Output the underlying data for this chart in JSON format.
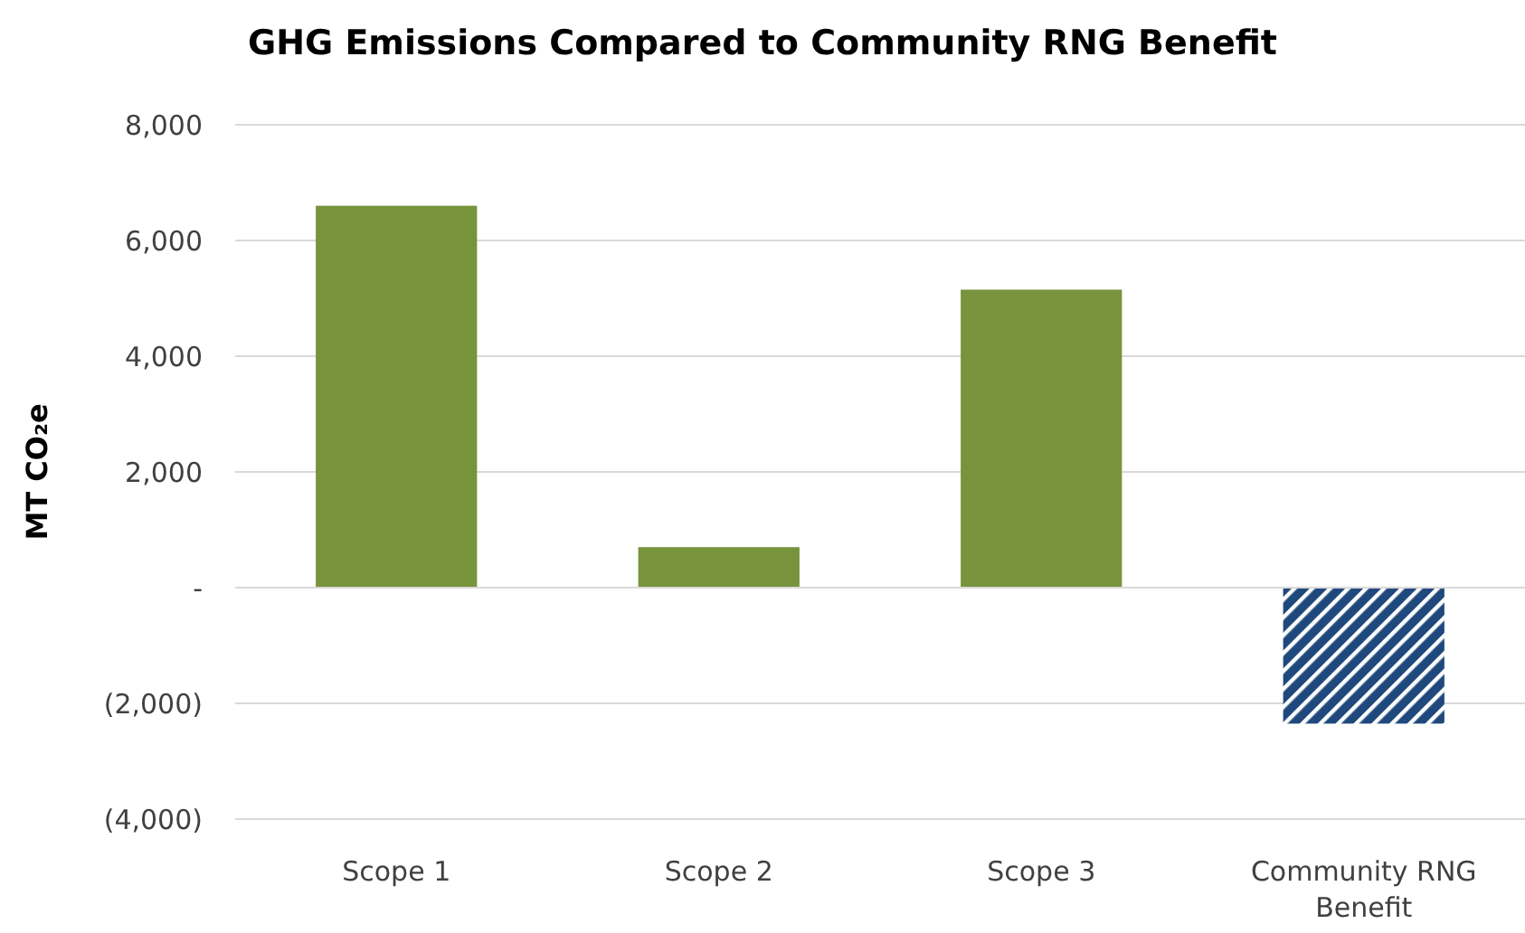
{
  "chart_data": {
    "type": "bar",
    "title": "GHG Emissions Compared to Community RNG Benefit",
    "ylabel": "MT CO₂e",
    "categories": [
      "Scope 1",
      "Scope 2",
      "Scope 3",
      "Community RNG Benefit"
    ],
    "values": [
      6600,
      700,
      5150,
      -2350
    ],
    "colors": [
      "#77933c",
      "#77933c",
      "#77933c",
      "#1f497d"
    ],
    "ylim": [
      -4000,
      8000
    ],
    "yticks": [
      {
        "value": -4000,
        "label": "(4,000)"
      },
      {
        "value": -2000,
        "label": "(2,000)"
      },
      {
        "value": 0,
        "label": "-"
      },
      {
        "value": 2000,
        "label": "2,000"
      },
      {
        "value": 4000,
        "label": "4,000"
      },
      {
        "value": 6000,
        "label": "6,000"
      },
      {
        "value": 8000,
        "label": "8,000"
      }
    ],
    "grid": "y"
  }
}
